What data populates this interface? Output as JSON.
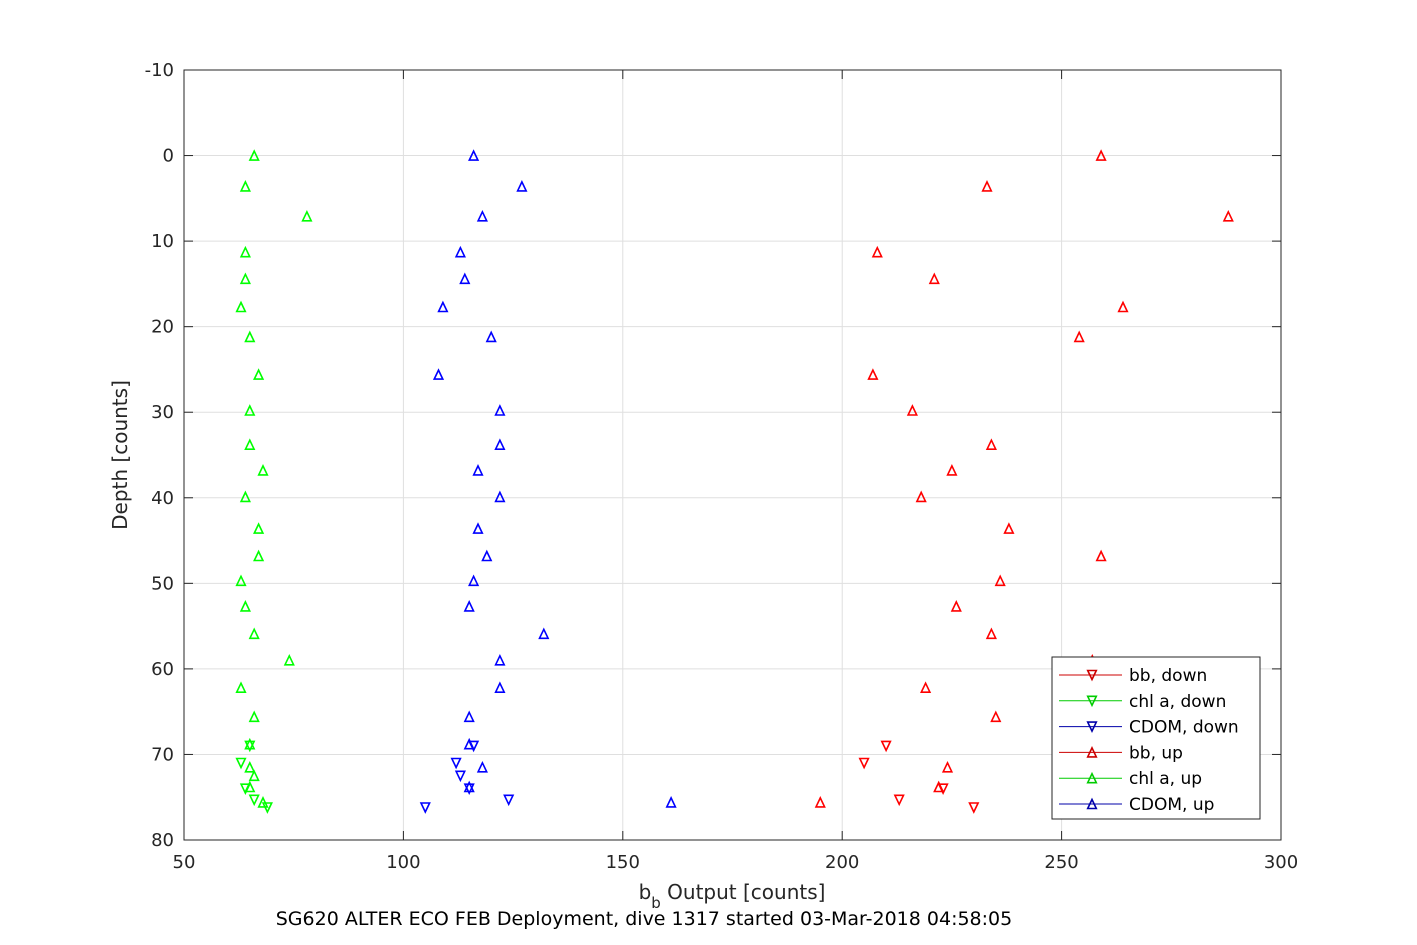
{
  "chart_data": {
    "type": "scatter",
    "title": "",
    "caption": "SG620 ALTER ECO FEB Deployment, dive 1317 started 03-Mar-2018 04:58:05",
    "xlabel_main": "b",
    "xlabel_sub": "b",
    "xlabel_rest": " Output [counts]",
    "ylabel": "Depth [counts]",
    "xlim": [
      50,
      300
    ],
    "ylim": [
      -10,
      80
    ],
    "y_reversed": true,
    "grid": true,
    "legend_position": "bottom-right",
    "x_ticks": [
      "50",
      "100",
      "150",
      "200",
      "250",
      "300"
    ],
    "y_ticks": [
      "-10",
      "0",
      "10",
      "20",
      "30",
      "40",
      "50",
      "60",
      "70",
      "80"
    ],
    "series": [
      {
        "name": "bb, down",
        "color": "#ff0000",
        "marker": "triangle-down",
        "points": [
          [
            210,
            69
          ],
          [
            205,
            71
          ],
          [
            223,
            74
          ],
          [
            213,
            75.3
          ],
          [
            230,
            76.2
          ]
        ]
      },
      {
        "name": "chl a, down",
        "color": "#00ff00",
        "marker": "triangle-down",
        "points": [
          [
            65,
            69
          ],
          [
            63,
            71
          ],
          [
            64,
            74
          ],
          [
            66,
            75.3
          ],
          [
            69,
            76.2
          ]
        ]
      },
      {
        "name": "CDOM, down",
        "color": "#0000ff",
        "marker": "triangle-down",
        "points": [
          [
            116,
            69
          ],
          [
            112,
            71
          ],
          [
            113,
            72.5
          ],
          [
            115,
            74
          ],
          [
            124,
            75.3
          ],
          [
            105,
            76.2
          ]
        ]
      },
      {
        "name": "bb, up",
        "color": "#ff0000",
        "marker": "triangle-up",
        "points": [
          [
            259,
            0
          ],
          [
            233,
            3.6
          ],
          [
            288,
            7.1
          ],
          [
            208,
            11.3
          ],
          [
            221,
            14.4
          ],
          [
            264,
            17.7
          ],
          [
            254,
            21.2
          ],
          [
            207,
            25.6
          ],
          [
            216,
            29.8
          ],
          [
            234,
            33.8
          ],
          [
            225,
            36.8
          ],
          [
            218,
            39.9
          ],
          [
            238,
            43.6
          ],
          [
            259,
            46.8
          ],
          [
            236,
            49.7
          ],
          [
            226,
            52.7
          ],
          [
            234,
            55.9
          ],
          [
            257,
            59
          ],
          [
            219,
            62.2
          ],
          [
            235,
            65.6
          ],
          [
            224,
            71.5
          ],
          [
            222,
            73.8
          ],
          [
            195,
            75.6
          ]
        ]
      },
      {
        "name": "chl a, up",
        "color": "#00ff00",
        "marker": "triangle-up",
        "points": [
          [
            66,
            0
          ],
          [
            64,
            3.6
          ],
          [
            78,
            7.1
          ],
          [
            64,
            11.3
          ],
          [
            64,
            14.4
          ],
          [
            63,
            17.7
          ],
          [
            65,
            21.2
          ],
          [
            67,
            25.6
          ],
          [
            65,
            29.8
          ],
          [
            65,
            33.8
          ],
          [
            68,
            36.8
          ],
          [
            64,
            39.9
          ],
          [
            67,
            43.6
          ],
          [
            67,
            46.8
          ],
          [
            63,
            49.7
          ],
          [
            64,
            52.7
          ],
          [
            66,
            55.9
          ],
          [
            74,
            59
          ],
          [
            63,
            62.2
          ],
          [
            66,
            65.6
          ],
          [
            65,
            68.8
          ],
          [
            65,
            71.5
          ],
          [
            66,
            72.5
          ],
          [
            65,
            73.8
          ],
          [
            68,
            75.6
          ]
        ]
      },
      {
        "name": "CDOM, up",
        "color": "#0000ff",
        "marker": "triangle-up",
        "points": [
          [
            116,
            0
          ],
          [
            127,
            3.6
          ],
          [
            118,
            7.1
          ],
          [
            113,
            11.3
          ],
          [
            114,
            14.4
          ],
          [
            109,
            17.7
          ],
          [
            120,
            21.2
          ],
          [
            108,
            25.6
          ],
          [
            122,
            29.8
          ],
          [
            122,
            33.8
          ],
          [
            117,
            36.8
          ],
          [
            122,
            39.9
          ],
          [
            117,
            43.6
          ],
          [
            119,
            46.8
          ],
          [
            116,
            49.7
          ],
          [
            115,
            52.7
          ],
          [
            132,
            55.9
          ],
          [
            122,
            59
          ],
          [
            122,
            62.2
          ],
          [
            115,
            65.6
          ],
          [
            115,
            68.8
          ],
          [
            118,
            71.5
          ],
          [
            115,
            73.8
          ],
          [
            161,
            75.6
          ]
        ]
      }
    ]
  }
}
